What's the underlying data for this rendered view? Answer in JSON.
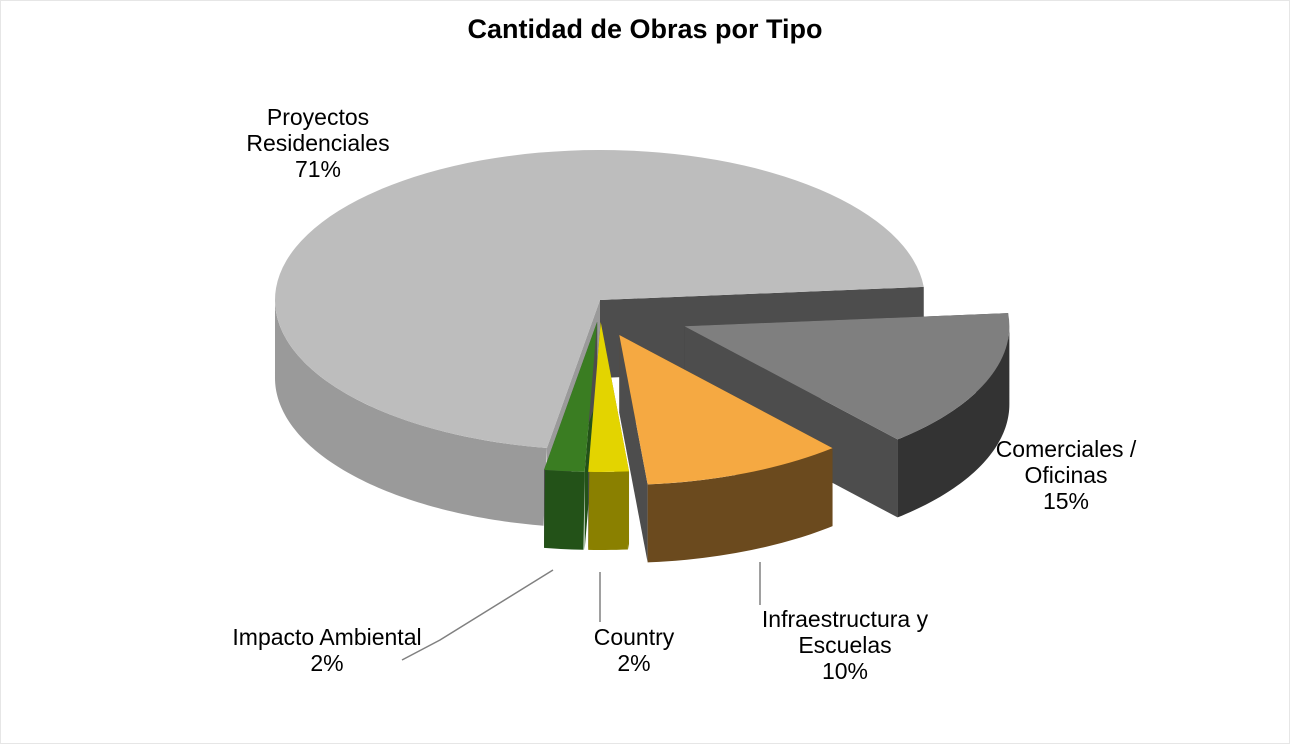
{
  "chart_data": {
    "type": "pie",
    "style": "3d-exploded",
    "title": "Cantidad de Obras por Tipo",
    "legend": "none",
    "slices": [
      {
        "label": "Proyectos Residenciales",
        "value": 71,
        "pct_label": "71%",
        "color": "#bdbdbd",
        "side": "#9a9a9a"
      },
      {
        "label": "Impacto Ambiental",
        "value": 2,
        "pct_label": "2%",
        "color": "#3a7d22",
        "side": "#235218"
      },
      {
        "label": "Country",
        "value": 2,
        "pct_label": "2%",
        "color": "#e3d400",
        "side": "#8a8000"
      },
      {
        "label": "Infraestructura y Escuelas",
        "value": 10,
        "pct_label": "10%",
        "color": "#f5a942",
        "side": "#6b4a1e"
      },
      {
        "label": "Comerciales / Oficinas",
        "value": 15,
        "pct_label": "15%",
        "color": "#7f7f7f",
        "side": "#333333"
      }
    ]
  }
}
